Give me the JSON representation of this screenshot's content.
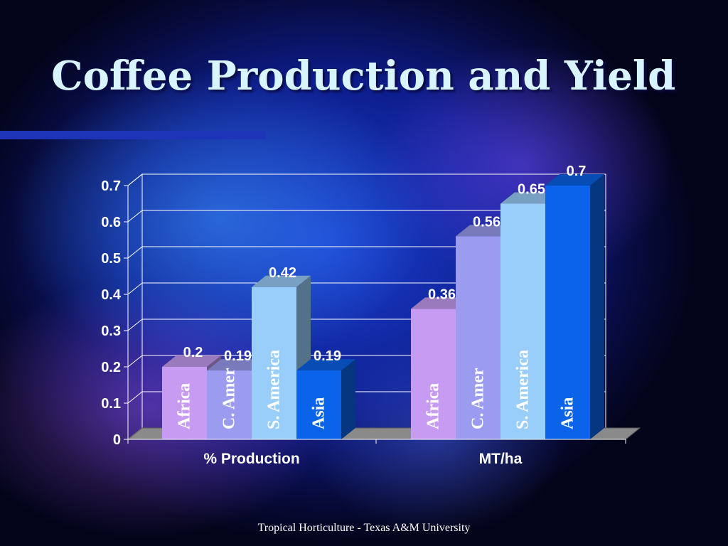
{
  "slide": {
    "title": "Coffee Production and Yield",
    "footer": "Tropical Horticulture - Texas A&M University"
  },
  "chart_data": {
    "type": "bar",
    "title": "",
    "xlabel": "",
    "ylabel": "",
    "ylim": [
      0,
      0.7
    ],
    "yticks": [
      "0",
      "0.1",
      "0.2",
      "0.3",
      "0.4",
      "0.5",
      "0.6",
      "0.7"
    ],
    "grid": true,
    "style": "3d-column",
    "categories": [
      "% Production",
      "MT/ha"
    ],
    "series": [
      {
        "name": "Africa",
        "color": "#c79bf2",
        "values": [
          0.2,
          0.36
        ],
        "labels": [
          "0.2",
          "0.36"
        ]
      },
      {
        "name": "C. Amer",
        "color": "#9b9cf0",
        "values": [
          0.19,
          0.56
        ],
        "labels": [
          "0.19",
          "0.56"
        ],
        "bar_text": [
          "C. Amer",
          "C. Amer"
        ]
      },
      {
        "name": "S. America",
        "color": "#99cdfa",
        "values": [
          0.42,
          0.65
        ],
        "labels": [
          "0.42",
          "0.65"
        ]
      },
      {
        "name": "Asia",
        "color": "#0a63e8",
        "values": [
          0.19,
          0.7
        ],
        "labels": [
          "0.19",
          "0.7"
        ]
      }
    ],
    "colors": {
      "floor": "#8a8a8a",
      "gridline": "#ffffff",
      "axis_text": "#ffffff",
      "bar_text": "#ffffff"
    }
  }
}
